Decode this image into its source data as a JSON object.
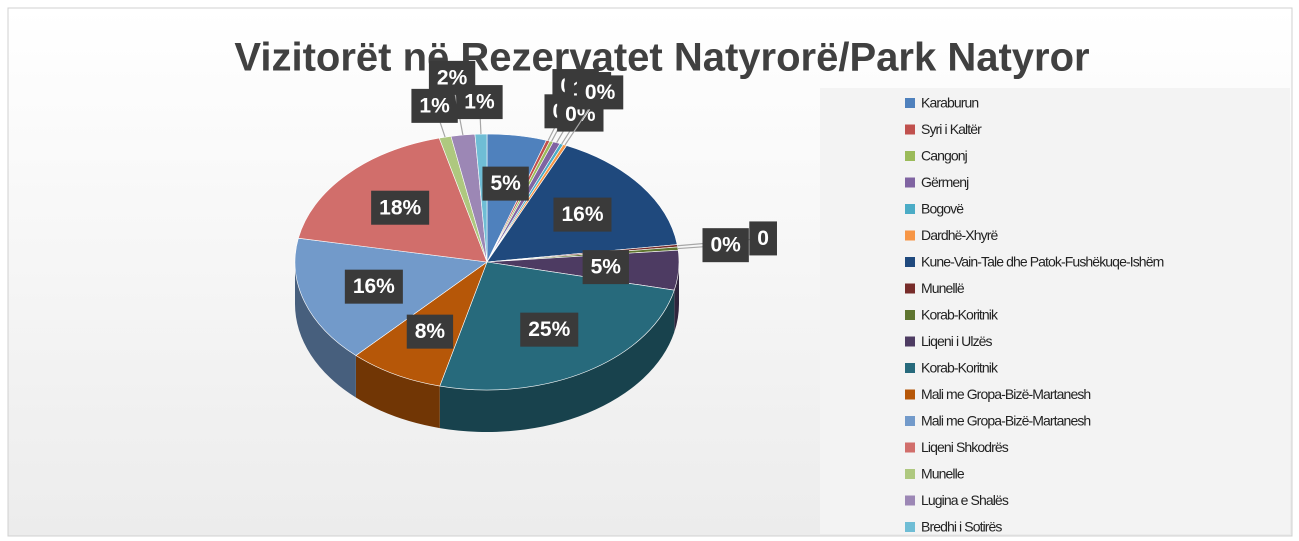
{
  "chart_data": {
    "type": "pie",
    "title": "Vizitorët në Rezervatet Natyrorë/Park Natyror",
    "categories": [
      "Karaburun",
      "Syri i Kaltër",
      "Cangonj",
      "Gërmenj",
      "Bogovë",
      "Dardhë-Xhyrë",
      "Kune-Vain-Tale dhe Patok-Fushëkuqe-Ishëm",
      "Munellë",
      "Korab-Koritnik",
      "Liqeni i Ulzës",
      "Korab-Koritnik",
      "Mali me Gropa-Bizë-Martanesh",
      "Mali me Gropa-Bizë-Martanesh",
      "Liqeni Shkodrës",
      "Munelle",
      "Lugina e Shalës",
      "Bredhi i Sotirës"
    ],
    "values": [
      5,
      0.3,
      0.3,
      0.6,
      0.3,
      0.3,
      16,
      0.3,
      0.4,
      5,
      25.4,
      8,
      16,
      18,
      1,
      2,
      1
    ],
    "value_labels": [
      "5%",
      "0%",
      "0%",
      "1%",
      "0%",
      "0%",
      "16%",
      "0",
      "0%",
      "5%",
      "25%",
      "8%",
      "16%",
      "18%",
      "1%",
      "2%",
      "1%"
    ],
    "colors": [
      "#4f81bd",
      "#c0504d",
      "#9bbb59",
      "#8064a2",
      "#4bacc6",
      "#f79646",
      "#1f497d",
      "#772c2a",
      "#5f7530",
      "#4d3b62",
      "#276a7c",
      "#b65708",
      "#729aca",
      "#d16e6b",
      "#aec87f",
      "#9c87b5",
      "#6fbdd5"
    ],
    "legend": "right"
  }
}
